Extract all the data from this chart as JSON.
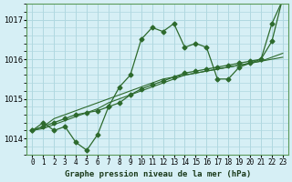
{
  "background_color": "#d6eff5",
  "grid_color": "#b0d8e0",
  "line_color": "#2d6a2d",
  "marker_color": "#2d6a2d",
  "title": "Graphe pression niveau de la mer (hPa)",
  "xlabel_hours": [
    0,
    1,
    2,
    3,
    4,
    5,
    6,
    7,
    8,
    9,
    10,
    11,
    12,
    13,
    14,
    15,
    16,
    17,
    18,
    19,
    20,
    21,
    22,
    23
  ],
  "ylim": [
    1013.6,
    1017.4
  ],
  "yticks": [
    1014,
    1015,
    1016,
    1017
  ],
  "series1": [
    1014.2,
    1014.4,
    1014.2,
    1014.3,
    1013.9,
    1013.7,
    1014.1,
    1014.8,
    1015.3,
    1015.6,
    1016.5,
    1016.8,
    1016.7,
    1016.9,
    1016.3,
    1016.4,
    1016.3,
    1015.5,
    1015.5,
    1015.8,
    1015.9,
    1016.0,
    1016.9,
    1017.5
  ],
  "series2": [
    1014.2,
    1014.3,
    1014.5,
    1014.6,
    1014.7,
    1014.8,
    1014.9,
    1015.0,
    1015.1,
    1015.2,
    1015.3,
    1015.4,
    1015.5,
    1015.55,
    1015.6,
    1015.65,
    1015.7,
    1015.75,
    1015.8,
    1015.85,
    1015.9,
    1015.95,
    1016.0,
    1016.05
  ],
  "series3": [
    1014.2,
    1014.25,
    1014.35,
    1014.45,
    1014.55,
    1014.65,
    1014.75,
    1014.9,
    1015.0,
    1015.1,
    1015.2,
    1015.3,
    1015.4,
    1015.5,
    1015.6,
    1015.65,
    1015.7,
    1015.75,
    1015.8,
    1015.85,
    1015.9,
    1015.95,
    1016.05,
    1016.15
  ],
  "series4": [
    1014.2,
    1014.3,
    1014.4,
    1014.5,
    1014.6,
    1014.65,
    1014.7,
    1014.8,
    1014.9,
    1015.1,
    1015.25,
    1015.35,
    1015.45,
    1015.55,
    1015.65,
    1015.7,
    1015.75,
    1015.8,
    1015.85,
    1015.9,
    1015.95,
    1016.0,
    1016.45,
    1017.55
  ]
}
